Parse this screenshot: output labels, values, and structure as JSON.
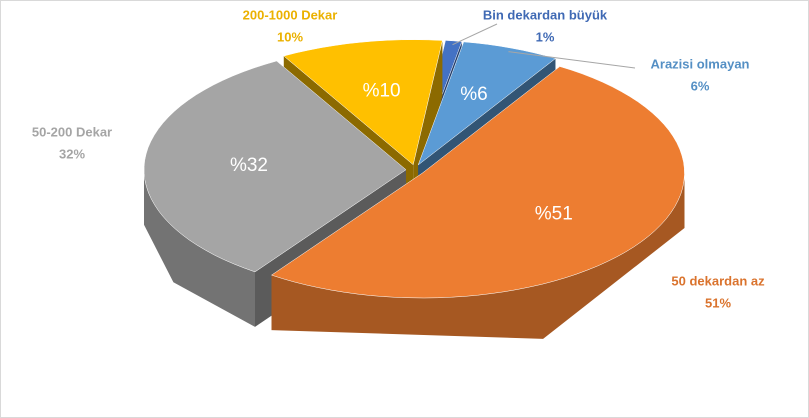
{
  "chart_data": {
    "type": "pie3d",
    "categories": [
      "Arazisi olmayan",
      "50 dekardan az",
      "50-200 Dekar",
      "200-1000 Dekar",
      "Bin dekardan büyük"
    ],
    "values": [
      6,
      51,
      32,
      10,
      1
    ],
    "value_labels": [
      "6%",
      "51%",
      "32%",
      "10%",
      "1%"
    ],
    "inner_labels": [
      "%6",
      "%51",
      "%32",
      "%10",
      null
    ],
    "colors": [
      "#5b9bd5",
      "#ed7d31",
      "#a5a5a5",
      "#ffc000",
      "#4472c4"
    ]
  }
}
